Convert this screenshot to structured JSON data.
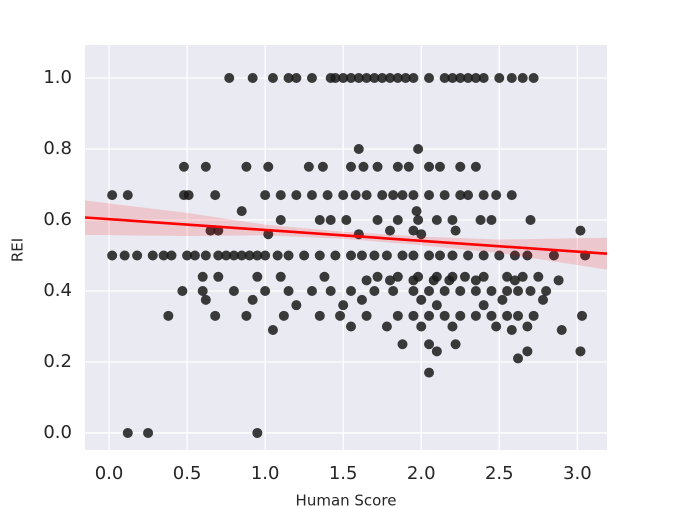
{
  "chart_data": {
    "type": "scatter",
    "xlabel": "Human Score",
    "ylabel": "REI",
    "xlim": [
      -0.154,
      3.19
    ],
    "ylim": [
      -0.048,
      1.093
    ],
    "xticks": [
      {
        "value": 0,
        "label": "0.0"
      },
      0.5,
      {
        "value": 1,
        "label": "1.0"
      },
      1.5,
      {
        "value": 2,
        "label": "2.0"
      },
      2.5,
      {
        "value": 3,
        "label": "3.0"
      }
    ],
    "yticks": [
      {
        "value": 0,
        "label": "0.0"
      },
      0.2,
      0.4,
      0.6,
      0.8,
      {
        "value": 1,
        "label": "1.0"
      }
    ],
    "grid": true,
    "color": "#1a1a1a",
    "line_color": "#ff0000",
    "x": [
      0.77,
      0.92,
      1.05,
      1.15,
      1.2,
      1.3,
      1.42,
      1.45,
      1.5,
      1.55,
      1.6,
      1.65,
      1.7,
      1.75,
      1.8,
      1.85,
      1.9,
      1.95,
      2.05,
      2.15,
      2.2,
      2.25,
      2.3,
      2.35,
      2.4,
      2.5,
      2.58,
      2.65,
      2.72,
      1.6,
      1.98,
      0.48,
      0.62,
      0.88,
      1.02,
      1.28,
      1.37,
      1.55,
      1.63,
      1.72,
      1.85,
      1.92,
      2.05,
      2.12,
      2.25,
      2.35,
      0.02,
      0.12,
      0.48,
      0.51,
      0.68,
      1.0,
      1.1,
      1.2,
      1.3,
      1.4,
      1.5,
      1.58,
      1.65,
      1.75,
      1.82,
      1.88,
      1.95,
      2.05,
      2.15,
      2.25,
      2.3,
      2.4,
      2.48,
      2.58,
      0.85,
      1.97,
      1.1,
      1.35,
      1.42,
      1.52,
      1.72,
      1.85,
      1.98,
      2.1,
      2.2,
      2.38,
      2.45,
      2.7,
      0.65,
      0.7,
      1.8,
      1.95,
      2.22,
      3.02,
      1.02,
      1.6,
      2.0,
      0.02,
      0.1,
      0.18,
      0.28,
      0.35,
      0.4,
      0.5,
      0.55,
      0.62,
      0.7,
      0.75,
      0.8,
      0.85,
      0.9,
      0.95,
      1.0,
      1.08,
      1.15,
      1.25,
      1.35,
      1.45,
      1.55,
      1.62,
      1.7,
      1.78,
      1.88,
      1.95,
      2.05,
      2.12,
      2.2,
      2.3,
      2.4,
      2.5,
      2.6,
      2.68,
      2.85,
      3.05,
      0.6,
      0.7,
      0.95,
      1.1,
      1.38,
      1.72,
      1.85,
      1.98,
      2.1,
      2.2,
      2.28,
      2.4,
      2.55,
      2.65,
      2.75,
      1.65,
      1.8,
      1.95,
      2.08,
      2.18,
      2.35,
      2.6,
      2.88,
      0.47,
      0.6,
      0.8,
      1.0,
      1.15,
      1.3,
      1.42,
      1.55,
      1.7,
      1.82,
      1.95,
      2.05,
      2.15,
      2.25,
      2.35,
      2.45,
      2.55,
      2.62,
      2.7,
      2.8,
      0.62,
      0.92,
      1.62,
      2.0,
      2.52,
      2.78,
      1.2,
      1.5,
      2.1,
      2.4,
      0.38,
      0.68,
      0.88,
      1.12,
      1.35,
      1.48,
      1.65,
      1.85,
      1.95,
      2.05,
      2.15,
      2.25,
      2.35,
      2.45,
      2.55,
      2.62,
      2.72,
      3.03,
      1.55,
      1.78,
      2.0,
      2.2,
      2.48,
      2.68,
      1.05,
      2.58,
      2.9,
      1.88,
      2.05,
      2.22,
      2.1,
      2.68,
      3.02,
      2.62,
      2.05,
      0.12,
      0.25,
      0.95
    ],
    "values": [
      1,
      1,
      1,
      1,
      1,
      1,
      1,
      1,
      1,
      1,
      1,
      1,
      1,
      1,
      1,
      1,
      1,
      1,
      1,
      1,
      1,
      1,
      1,
      1,
      1,
      1,
      1,
      1,
      1,
      0.8,
      0.8,
      0.75,
      0.75,
      0.75,
      0.75,
      0.75,
      0.75,
      0.75,
      0.75,
      0.75,
      0.75,
      0.75,
      0.75,
      0.75,
      0.75,
      0.75,
      0.67,
      0.67,
      0.67,
      0.67,
      0.67,
      0.67,
      0.67,
      0.67,
      0.67,
      0.67,
      0.67,
      0.67,
      0.67,
      0.67,
      0.67,
      0.67,
      0.67,
      0.67,
      0.67,
      0.67,
      0.67,
      0.67,
      0.67,
      0.67,
      0.625,
      0.625,
      0.6,
      0.6,
      0.6,
      0.6,
      0.6,
      0.6,
      0.6,
      0.6,
      0.6,
      0.6,
      0.6,
      0.6,
      0.57,
      0.57,
      0.57,
      0.57,
      0.57,
      0.57,
      0.56,
      0.56,
      0.56,
      0.5,
      0.5,
      0.5,
      0.5,
      0.5,
      0.5,
      0.5,
      0.5,
      0.5,
      0.5,
      0.5,
      0.5,
      0.5,
      0.5,
      0.5,
      0.5,
      0.5,
      0.5,
      0.5,
      0.5,
      0.5,
      0.5,
      0.5,
      0.5,
      0.5,
      0.5,
      0.5,
      0.5,
      0.5,
      0.5,
      0.5,
      0.5,
      0.5,
      0.5,
      0.5,
      0.5,
      0.5,
      0.44,
      0.44,
      0.44,
      0.44,
      0.44,
      0.44,
      0.44,
      0.44,
      0.44,
      0.44,
      0.44,
      0.44,
      0.44,
      0.44,
      0.44,
      0.43,
      0.43,
      0.43,
      0.43,
      0.43,
      0.43,
      0.43,
      0.43,
      0.4,
      0.4,
      0.4,
      0.4,
      0.4,
      0.4,
      0.4,
      0.4,
      0.4,
      0.4,
      0.4,
      0.4,
      0.4,
      0.4,
      0.4,
      0.4,
      0.4,
      0.4,
      0.4,
      0.4,
      0.375,
      0.375,
      0.375,
      0.375,
      0.375,
      0.375,
      0.36,
      0.36,
      0.36,
      0.36,
      0.33,
      0.33,
      0.33,
      0.33,
      0.33,
      0.33,
      0.33,
      0.33,
      0.33,
      0.33,
      0.33,
      0.33,
      0.33,
      0.33,
      0.33,
      0.33,
      0.33,
      0.33,
      0.3,
      0.3,
      0.3,
      0.3,
      0.3,
      0.3,
      0.29,
      0.29,
      0.29,
      0.25,
      0.25,
      0.25,
      0.23,
      0.23,
      0.23,
      0.21,
      0.17,
      0,
      0,
      0
    ],
    "regression": {
      "x": [
        -0.154,
        3.19
      ],
      "values": [
        0.607,
        0.505
      ]
    },
    "band": {
      "x": [
        -0.154,
        0.5,
        1.0,
        1.5,
        2.0,
        2.5,
        3.19
      ],
      "upper": [
        0.655,
        0.62,
        0.587,
        0.567,
        0.553,
        0.545,
        0.55
      ],
      "lower": [
        0.558,
        0.555,
        0.557,
        0.547,
        0.529,
        0.507,
        0.46
      ]
    }
  }
}
